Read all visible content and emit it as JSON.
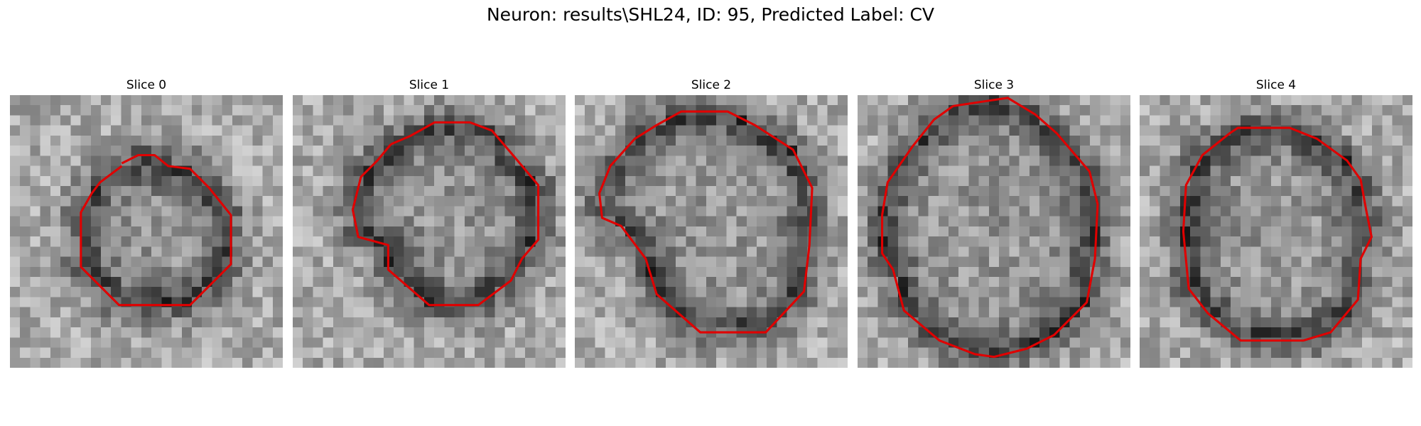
{
  "figure": {
    "title": "Neuron: results\\SHL24, ID: 95, Predicted Label: CV"
  },
  "panels": [
    {
      "title": "Slice 0",
      "contour_color": "#e00000",
      "contour": [
        [
          0.41,
          0.25
        ],
        [
          0.47,
          0.22
        ],
        [
          0.53,
          0.22
        ],
        [
          0.58,
          0.26
        ],
        [
          0.66,
          0.27
        ],
        [
          0.73,
          0.34
        ],
        [
          0.81,
          0.44
        ],
        [
          0.81,
          0.62
        ],
        [
          0.66,
          0.77
        ],
        [
          0.4,
          0.77
        ],
        [
          0.26,
          0.63
        ],
        [
          0.26,
          0.43
        ],
        [
          0.3,
          0.36
        ],
        [
          0.33,
          0.32
        ],
        [
          0.41,
          0.26
        ]
      ]
    },
    {
      "title": "Slice 1",
      "contour_color": "#e00000",
      "contour": [
        [
          0.36,
          0.18
        ],
        [
          0.43,
          0.15
        ],
        [
          0.52,
          0.1
        ],
        [
          0.65,
          0.1
        ],
        [
          0.73,
          0.13
        ],
        [
          0.79,
          0.2
        ],
        [
          0.9,
          0.33
        ],
        [
          0.9,
          0.53
        ],
        [
          0.84,
          0.6
        ],
        [
          0.8,
          0.68
        ],
        [
          0.68,
          0.77
        ],
        [
          0.5,
          0.77
        ],
        [
          0.35,
          0.64
        ],
        [
          0.35,
          0.55
        ],
        [
          0.24,
          0.52
        ],
        [
          0.22,
          0.42
        ],
        [
          0.25,
          0.3
        ],
        [
          0.31,
          0.24
        ],
        [
          0.36,
          0.18
        ]
      ]
    },
    {
      "title": "Slice 2",
      "contour_color": "#e00000",
      "contour": [
        [
          0.3,
          0.11
        ],
        [
          0.39,
          0.06
        ],
        [
          0.56,
          0.06
        ],
        [
          0.66,
          0.11
        ],
        [
          0.8,
          0.2
        ],
        [
          0.87,
          0.34
        ],
        [
          0.86,
          0.55
        ],
        [
          0.84,
          0.72
        ],
        [
          0.7,
          0.87
        ],
        [
          0.46,
          0.87
        ],
        [
          0.3,
          0.73
        ],
        [
          0.26,
          0.6
        ],
        [
          0.2,
          0.52
        ],
        [
          0.17,
          0.48
        ],
        [
          0.1,
          0.45
        ],
        [
          0.09,
          0.36
        ],
        [
          0.13,
          0.26
        ],
        [
          0.22,
          0.16
        ],
        [
          0.3,
          0.11
        ]
      ]
    },
    {
      "title": "Slice 3",
      "contour_color": "#e00000",
      "contour": [
        [
          0.35,
          0.04
        ],
        [
          0.55,
          0.01
        ],
        [
          0.65,
          0.07
        ],
        [
          0.73,
          0.14
        ],
        [
          0.85,
          0.28
        ],
        [
          0.88,
          0.4
        ],
        [
          0.87,
          0.6
        ],
        [
          0.84,
          0.76
        ],
        [
          0.72,
          0.88
        ],
        [
          0.62,
          0.93
        ],
        [
          0.5,
          0.96
        ],
        [
          0.43,
          0.95
        ],
        [
          0.3,
          0.9
        ],
        [
          0.17,
          0.79
        ],
        [
          0.13,
          0.64
        ],
        [
          0.09,
          0.58
        ],
        [
          0.09,
          0.44
        ],
        [
          0.11,
          0.32
        ],
        [
          0.2,
          0.19
        ],
        [
          0.28,
          0.09
        ],
        [
          0.35,
          0.04
        ]
      ]
    },
    {
      "title": "Slice 4",
      "contour_color": "#e00000",
      "contour": [
        [
          0.33,
          0.14
        ],
        [
          0.36,
          0.12
        ],
        [
          0.55,
          0.12
        ],
        [
          0.65,
          0.16
        ],
        [
          0.76,
          0.24
        ],
        [
          0.81,
          0.31
        ],
        [
          0.83,
          0.42
        ],
        [
          0.85,
          0.52
        ],
        [
          0.81,
          0.6
        ],
        [
          0.8,
          0.75
        ],
        [
          0.7,
          0.87
        ],
        [
          0.6,
          0.9
        ],
        [
          0.37,
          0.9
        ],
        [
          0.25,
          0.8
        ],
        [
          0.18,
          0.71
        ],
        [
          0.16,
          0.5
        ],
        [
          0.17,
          0.33
        ],
        [
          0.23,
          0.22
        ],
        [
          0.33,
          0.14
        ]
      ]
    }
  ]
}
